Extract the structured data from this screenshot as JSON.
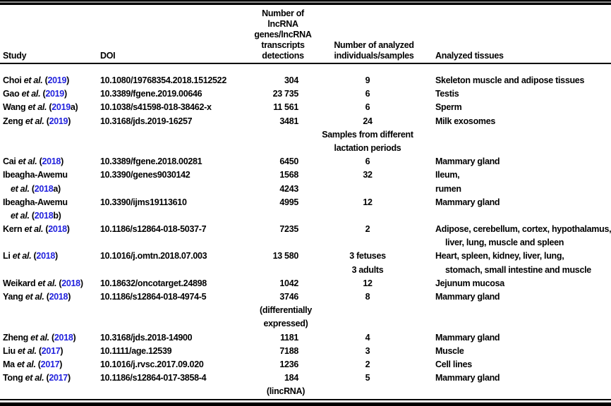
{
  "table": {
    "link_color": "#2222dd",
    "text_color": "#000000",
    "header": {
      "study": "Study",
      "doi": "DOI",
      "detections_lines": [
        "Number of",
        "lncRNA",
        "genes/lncRNA",
        "transcripts",
        "detections"
      ],
      "individuals_lines": [
        "Number of analyzed",
        "individuals/samples"
      ],
      "tissues": "Analyzed tissues"
    },
    "rows": [
      {
        "study": [
          {
            "indent": false,
            "seg": [
              {
                "t": "Choi ",
                "s": "p"
              },
              {
                "t": "et al.",
                "s": "i"
              },
              {
                "t": " (",
                "s": "p"
              },
              {
                "t": "2019",
                "s": "l"
              },
              {
                "t": ")",
                "s": "p"
              }
            ]
          }
        ],
        "doi": "10.1080/19768354.2018.1512522",
        "det": [
          {
            "t": "304",
            "k": "num"
          }
        ],
        "ind": [
          "9"
        ],
        "tis": [
          {
            "t": "Skeleton muscle and adipose tissues",
            "indent": false
          }
        ]
      },
      {
        "study": [
          {
            "indent": false,
            "seg": [
              {
                "t": "Gao ",
                "s": "p"
              },
              {
                "t": "et al.",
                "s": "i"
              },
              {
                "t": " (",
                "s": "p"
              },
              {
                "t": "2019",
                "s": "l"
              },
              {
                "t": ")",
                "s": "p"
              }
            ]
          }
        ],
        "doi": "10.3389/fgene.2019.00646",
        "det": [
          {
            "t": "23 735",
            "k": "num"
          }
        ],
        "ind": [
          "6"
        ],
        "tis": [
          {
            "t": "Testis",
            "indent": false
          }
        ]
      },
      {
        "study": [
          {
            "indent": false,
            "seg": [
              {
                "t": "Wang ",
                "s": "p"
              },
              {
                "t": "et al.",
                "s": "i"
              },
              {
                "t": " (",
                "s": "p"
              },
              {
                "t": "2019",
                "s": "l"
              },
              {
                "t": "a)",
                "s": "p"
              }
            ]
          }
        ],
        "doi": "10.1038/s41598-018-38462-x",
        "det": [
          {
            "t": "11 561",
            "k": "num"
          }
        ],
        "ind": [
          "6"
        ],
        "tis": [
          {
            "t": "Sperm",
            "indent": false
          }
        ]
      },
      {
        "study": [
          {
            "indent": false,
            "seg": [
              {
                "t": "Zeng ",
                "s": "p"
              },
              {
                "t": "et al.",
                "s": "i"
              },
              {
                "t": " (",
                "s": "p"
              },
              {
                "t": "2019",
                "s": "l"
              },
              {
                "t": ")",
                "s": "p"
              }
            ]
          }
        ],
        "doi": "10.3168/jds.2019-16257",
        "det": [
          {
            "t": "3481",
            "k": "num"
          }
        ],
        "ind": [
          "24",
          "Samples from different",
          "lactation periods"
        ],
        "tis": [
          {
            "t": "Milk exosomes",
            "indent": false
          }
        ]
      },
      {
        "study": [
          {
            "indent": false,
            "seg": [
              {
                "t": "Cai ",
                "s": "p"
              },
              {
                "t": "et al.",
                "s": "i"
              },
              {
                "t": " (",
                "s": "p"
              },
              {
                "t": "2018",
                "s": "l"
              },
              {
                "t": ")",
                "s": "p"
              }
            ]
          }
        ],
        "doi": "10.3389/fgene.2018.00281",
        "det": [
          {
            "t": "6450",
            "k": "num"
          }
        ],
        "ind": [
          "6"
        ],
        "tis": [
          {
            "t": "Mammary gland",
            "indent": false
          }
        ]
      },
      {
        "study": [
          {
            "indent": false,
            "seg": [
              {
                "t": "Ibeagha-Awemu",
                "s": "p"
              }
            ]
          },
          {
            "indent": true,
            "seg": [
              {
                "t": "et al.",
                "s": "i"
              },
              {
                "t": " (",
                "s": "p"
              },
              {
                "t": "2018",
                "s": "l"
              },
              {
                "t": "a)",
                "s": "p"
              }
            ]
          }
        ],
        "doi": "10.3390/genes9030142",
        "det": [
          {
            "t": "1568",
            "k": "num"
          },
          {
            "t": "4243",
            "k": "num"
          }
        ],
        "ind": [
          "32"
        ],
        "tis": [
          {
            "t": "Ileum,",
            "indent": false
          },
          {
            "t": "rumen",
            "indent": false
          }
        ]
      },
      {
        "study": [
          {
            "indent": false,
            "seg": [
              {
                "t": "Ibeagha-Awemu",
                "s": "p"
              }
            ]
          },
          {
            "indent": true,
            "seg": [
              {
                "t": "et al.",
                "s": "i"
              },
              {
                "t": " (",
                "s": "p"
              },
              {
                "t": "2018",
                "s": "l"
              },
              {
                "t": "b)",
                "s": "p"
              }
            ]
          }
        ],
        "doi": "10.3390/ijms19113610",
        "det": [
          {
            "t": "4995",
            "k": "num"
          }
        ],
        "ind": [
          "12"
        ],
        "tis": [
          {
            "t": "Mammary gland",
            "indent": false
          }
        ]
      },
      {
        "study": [
          {
            "indent": false,
            "seg": [
              {
                "t": "Kern ",
                "s": "p"
              },
              {
                "t": "et al.",
                "s": "i"
              },
              {
                "t": " (",
                "s": "p"
              },
              {
                "t": "2018",
                "s": "l"
              },
              {
                "t": ")",
                "s": "p"
              }
            ]
          }
        ],
        "doi": "10.1186/s12864-018-5037-7",
        "det": [
          {
            "t": "7235",
            "k": "num"
          }
        ],
        "ind": [
          "2"
        ],
        "tis": [
          {
            "t": "Adipose, cerebellum, cortex, hypothalamus,",
            "indent": false
          },
          {
            "t": "liver, lung, muscle and spleen",
            "indent": true
          }
        ]
      },
      {
        "study": [
          {
            "indent": false,
            "seg": [
              {
                "t": "Li ",
                "s": "p"
              },
              {
                "t": "et al.",
                "s": "i"
              },
              {
                "t": " (",
                "s": "p"
              },
              {
                "t": "2018",
                "s": "l"
              },
              {
                "t": ")",
                "s": "p"
              }
            ]
          }
        ],
        "doi": "10.1016/j.omtn.2018.07.003",
        "det": [
          {
            "t": "13 580",
            "k": "num"
          }
        ],
        "ind": [
          "3 fetuses",
          "3 adults"
        ],
        "tis": [
          {
            "t": "Heart, spleen, kidney, liver, lung,",
            "indent": false
          },
          {
            "t": "stomach, small intestine and muscle",
            "indent": true
          }
        ]
      },
      {
        "study": [
          {
            "indent": false,
            "seg": [
              {
                "t": "Weikard ",
                "s": "p"
              },
              {
                "t": "et al.",
                "s": "i"
              },
              {
                "t": " (",
                "s": "p"
              },
              {
                "t": "2018",
                "s": "l"
              },
              {
                "t": ")",
                "s": "p"
              }
            ]
          }
        ],
        "doi": "10.18632/oncotarget.24898",
        "det": [
          {
            "t": "1042",
            "k": "num"
          }
        ],
        "ind": [
          "12"
        ],
        "tis": [
          {
            "t": "Jejunum mucosa",
            "indent": false
          }
        ]
      },
      {
        "study": [
          {
            "indent": false,
            "seg": [
              {
                "t": "Yang ",
                "s": "p"
              },
              {
                "t": "et al.",
                "s": "i"
              },
              {
                "t": " (",
                "s": "p"
              },
              {
                "t": "2018",
                "s": "l"
              },
              {
                "t": ")",
                "s": "p"
              }
            ]
          }
        ],
        "doi": "10.1186/s12864-018-4974-5",
        "det": [
          {
            "t": "3746",
            "k": "num"
          },
          {
            "t": "(differentially",
            "k": "note"
          },
          {
            "t": "expressed)",
            "k": "note"
          }
        ],
        "ind": [
          "8"
        ],
        "tis": [
          {
            "t": "Mammary gland",
            "indent": false
          }
        ]
      },
      {
        "study": [
          {
            "indent": false,
            "seg": [
              {
                "t": "Zheng ",
                "s": "p"
              },
              {
                "t": "et al.",
                "s": "i"
              },
              {
                "t": " (",
                "s": "p"
              },
              {
                "t": "2018",
                "s": "l"
              },
              {
                "t": ")",
                "s": "p"
              }
            ]
          }
        ],
        "doi": "10.3168/jds.2018-14900",
        "det": [
          {
            "t": "1181",
            "k": "num"
          }
        ],
        "ind": [
          "4"
        ],
        "tis": [
          {
            "t": "Mammary gland",
            "indent": false
          }
        ]
      },
      {
        "study": [
          {
            "indent": false,
            "seg": [
              {
                "t": "Liu ",
                "s": "p"
              },
              {
                "t": "et al.",
                "s": "i"
              },
              {
                "t": " (",
                "s": "p"
              },
              {
                "t": "2017",
                "s": "l"
              },
              {
                "t": ")",
                "s": "p"
              }
            ]
          }
        ],
        "doi": "10.1111/age.12539",
        "det": [
          {
            "t": "7188",
            "k": "num"
          }
        ],
        "ind": [
          "3"
        ],
        "tis": [
          {
            "t": "Muscle",
            "indent": false
          }
        ]
      },
      {
        "study": [
          {
            "indent": false,
            "seg": [
              {
                "t": "Ma ",
                "s": "p"
              },
              {
                "t": "et al.",
                "s": "i"
              },
              {
                "t": " (",
                "s": "p"
              },
              {
                "t": "2017",
                "s": "l"
              },
              {
                "t": ")",
                "s": "p"
              }
            ]
          }
        ],
        "doi": "10.1016/j.rvsc.2017.09.020",
        "det": [
          {
            "t": "1236",
            "k": "num"
          }
        ],
        "ind": [
          "2"
        ],
        "tis": [
          {
            "t": "Cell lines",
            "indent": false
          }
        ]
      },
      {
        "study": [
          {
            "indent": false,
            "seg": [
              {
                "t": "Tong ",
                "s": "p"
              },
              {
                "t": "et al.",
                "s": "i"
              },
              {
                "t": " (",
                "s": "p"
              },
              {
                "t": "2017",
                "s": "l"
              },
              {
                "t": ")",
                "s": "p"
              }
            ]
          }
        ],
        "doi": "10.1186/s12864-017-3858-4",
        "det": [
          {
            "t": "184",
            "k": "num"
          },
          {
            "t": "(lincRNA)",
            "k": "note"
          }
        ],
        "ind": [
          "5"
        ],
        "tis": [
          {
            "t": "Mammary gland",
            "indent": false
          }
        ]
      }
    ]
  }
}
